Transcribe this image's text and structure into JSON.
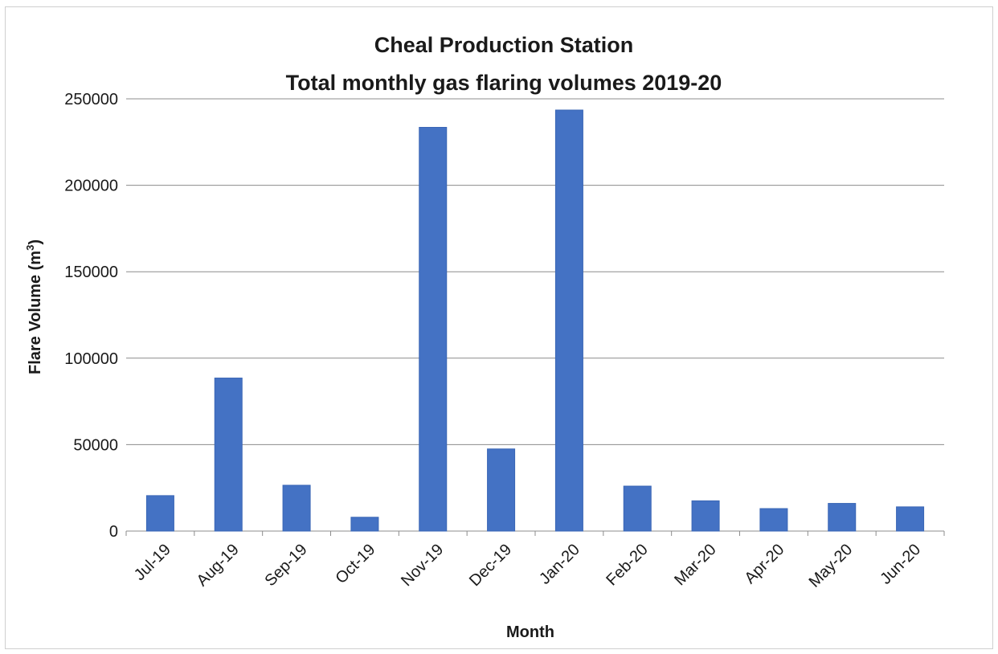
{
  "colors": {
    "bar": "#4472C4",
    "bar_edge": "#3a66b5",
    "grid": "#8c8c8c",
    "axis": "#8c8c8c"
  },
  "chart_data": {
    "type": "bar",
    "title": [
      "Cheal Production Station",
      "Total monthly gas flaring volumes 2019-20"
    ],
    "xlabel": "Month",
    "ylabel": "Flare Volume (m",
    "ylabel_superscript": "3",
    "ylabel_suffix": ")",
    "categories": [
      "Jul-19",
      "Aug-19",
      "Sep-19",
      "Oct-19",
      "Nov-19",
      "Dec-19",
      "Jan-20",
      "Feb-20",
      "Mar-20",
      "Apr-20",
      "May-20",
      "Jun-20"
    ],
    "values": [
      20500,
      88500,
      26500,
      8000,
      233500,
      47500,
      243500,
      26000,
      17500,
      13000,
      16000,
      14000
    ],
    "ylim": [
      0,
      250000
    ],
    "yticks": [
      "0",
      "50000",
      "100000",
      "150000",
      "200000",
      "250000"
    ],
    "grid": "horizontal",
    "legend": "none"
  }
}
